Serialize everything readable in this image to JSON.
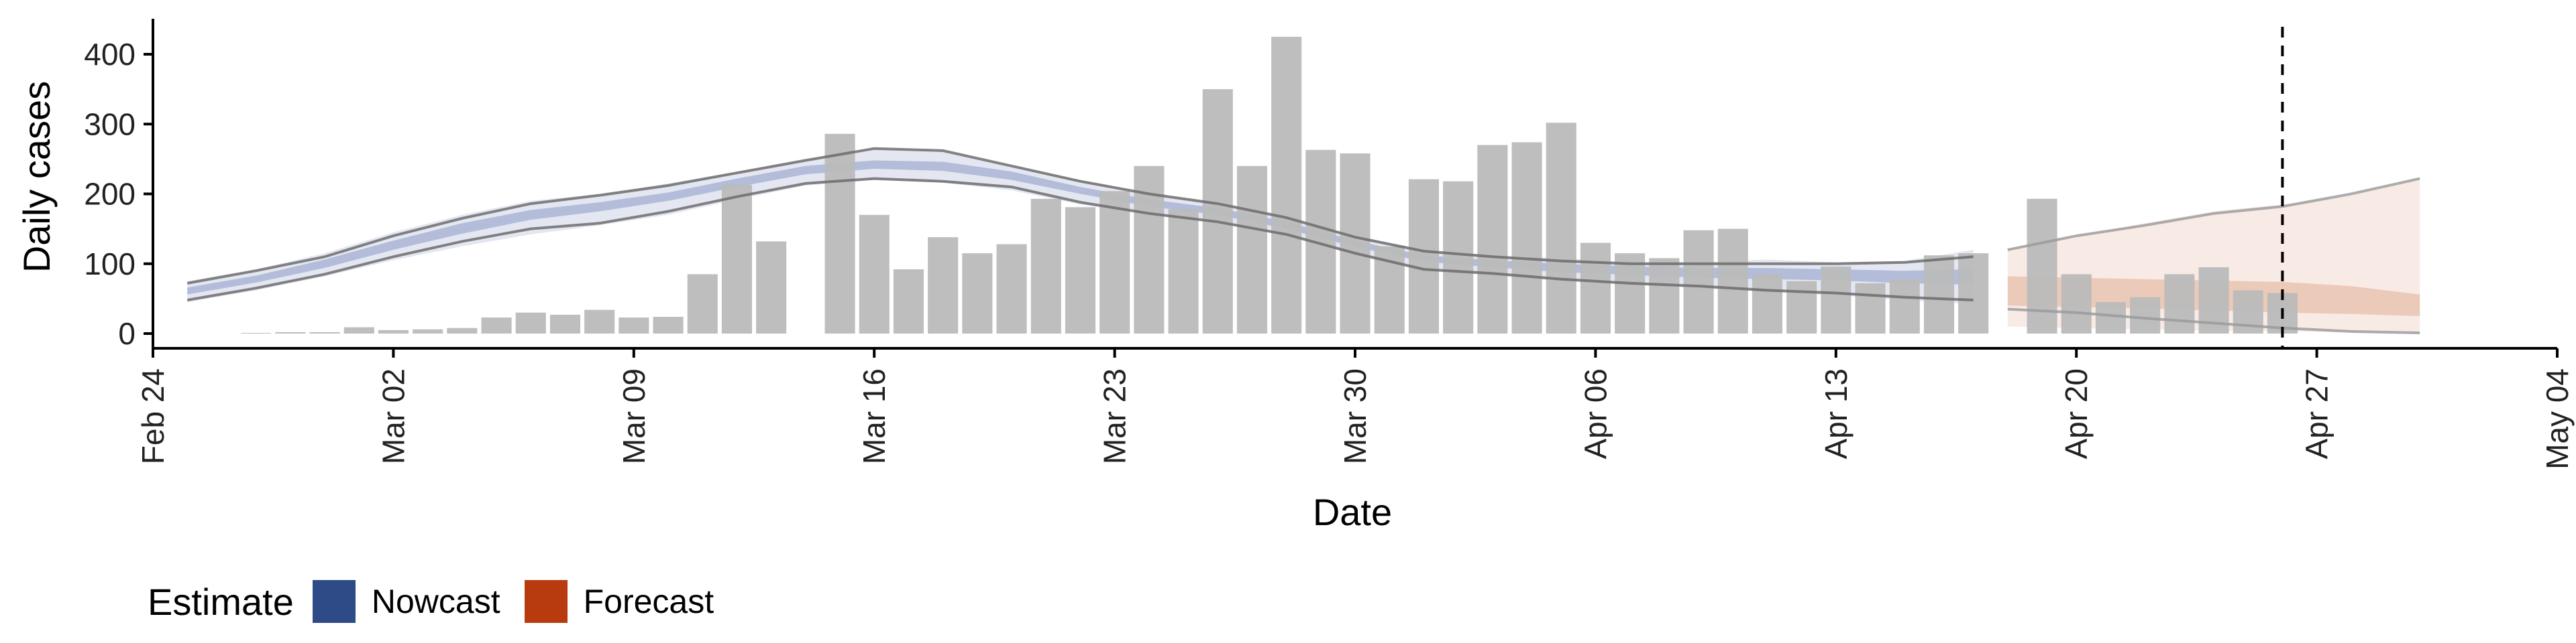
{
  "chart_data": {
    "type": "bar",
    "xlabel": "Date",
    "ylabel": "Daily cases",
    "xlim": [
      "2020-02-24",
      "2020-05-04"
    ],
    "ylim": [
      0,
      440
    ],
    "x_ticks": [
      "Feb 24",
      "Mar 02",
      "Mar 09",
      "Mar 16",
      "Mar 23",
      "Mar 30",
      "Apr 06",
      "Apr 13",
      "Apr 20",
      "Apr 27",
      "May 04"
    ],
    "y_ticks": [
      0,
      100,
      200,
      300,
      400
    ],
    "grid": false,
    "legend": {
      "title": "Estimate",
      "placement": "bottom-left",
      "entries": [
        {
          "label": "Nowcast",
          "color": "#2E4A87"
        },
        {
          "label": "Forecast",
          "color": "#B83B0F"
        }
      ]
    },
    "vline_date": "2020-04-26",
    "observed_cases": {
      "color": "#BBBBBB",
      "dates": [
        "2020-02-27",
        "2020-02-28",
        "2020-02-29",
        "2020-03-01",
        "2020-03-02",
        "2020-03-03",
        "2020-03-04",
        "2020-03-05",
        "2020-03-06",
        "2020-03-07",
        "2020-03-08",
        "2020-03-09",
        "2020-03-10",
        "2020-03-11",
        "2020-03-12",
        "2020-03-13",
        "2020-03-14",
        "2020-03-15",
        "2020-03-16",
        "2020-03-17",
        "2020-03-18",
        "2020-03-19",
        "2020-03-20",
        "2020-03-21",
        "2020-03-22",
        "2020-03-23",
        "2020-03-24",
        "2020-03-25",
        "2020-03-26",
        "2020-03-27",
        "2020-03-28",
        "2020-03-29",
        "2020-03-30",
        "2020-03-31",
        "2020-04-01",
        "2020-04-02",
        "2020-04-03",
        "2020-04-04",
        "2020-04-05",
        "2020-04-06",
        "2020-04-07",
        "2020-04-08",
        "2020-04-09",
        "2020-04-10",
        "2020-04-11",
        "2020-04-12",
        "2020-04-13",
        "2020-04-14",
        "2020-04-15",
        "2020-04-16",
        "2020-04-17",
        "2020-04-18",
        "2020-04-19",
        "2020-04-20",
        "2020-04-21",
        "2020-04-22",
        "2020-04-23",
        "2020-04-24",
        "2020-04-25",
        "2020-04-26"
      ],
      "values": [
        1,
        2,
        2,
        9,
        5,
        6,
        8,
        23,
        30,
        27,
        34,
        23,
        24,
        85,
        213,
        132,
        0,
        286,
        170,
        92,
        138,
        115,
        128,
        193,
        181,
        204,
        240,
        178,
        350,
        240,
        425,
        263,
        258,
        125,
        221,
        218,
        270,
        274,
        302,
        130,
        115,
        108,
        148,
        150,
        85,
        75,
        96,
        72,
        78,
        112,
        115,
        0,
        193,
        85,
        45,
        52,
        85,
        95,
        62,
        58
      ]
    },
    "nowcast": {
      "color": "#2E4A87",
      "dates": [
        "2020-02-25",
        "2020-02-27",
        "2020-02-29",
        "2020-03-02",
        "2020-03-04",
        "2020-03-06",
        "2020-03-08",
        "2020-03-10",
        "2020-03-12",
        "2020-03-14",
        "2020-03-16",
        "2020-03-18",
        "2020-03-20",
        "2020-03-22",
        "2020-03-24",
        "2020-03-26",
        "2020-03-28",
        "2020-03-30",
        "2020-04-01",
        "2020-04-03",
        "2020-04-05",
        "2020-04-07",
        "2020-04-09",
        "2020-04-11",
        "2020-04-13",
        "2020-04-15",
        "2020-04-17"
      ],
      "outer_lower": [
        45,
        62,
        82,
        105,
        125,
        142,
        155,
        170,
        192,
        212,
        220,
        216,
        205,
        185,
        170,
        158,
        140,
        112,
        90,
        84,
        75,
        70,
        65,
        60,
        55,
        48,
        42
      ],
      "outer_upper": [
        75,
        92,
        115,
        145,
        170,
        190,
        200,
        215,
        232,
        250,
        265,
        262,
        240,
        220,
        200,
        188,
        168,
        140,
        120,
        112,
        108,
        102,
        102,
        106,
        102,
        104,
        120
      ],
      "inner_lower": [
        56,
        73,
        94,
        120,
        143,
        163,
        175,
        190,
        210,
        228,
        236,
        233,
        220,
        200,
        182,
        170,
        150,
        124,
        103,
        95,
        88,
        84,
        80,
        78,
        76,
        72,
        70
      ],
      "inner_upper": [
        66,
        83,
        106,
        133,
        158,
        177,
        188,
        202,
        222,
        240,
        248,
        246,
        232,
        210,
        192,
        180,
        160,
        133,
        112,
        105,
        100,
        96,
        94,
        94,
        92,
        90,
        92
      ],
      "line_lower": [
        48,
        65,
        85,
        110,
        132,
        150,
        158,
        175,
        196,
        215,
        222,
        218,
        210,
        188,
        172,
        160,
        142,
        115,
        92,
        86,
        78,
        72,
        68,
        62,
        58,
        52,
        48
      ],
      "line_upper": [
        72,
        90,
        110,
        140,
        165,
        186,
        198,
        212,
        230,
        248,
        265,
        262,
        240,
        218,
        200,
        186,
        166,
        138,
        118,
        110,
        104,
        100,
        100,
        100,
        100,
        102,
        110
      ]
    },
    "forecast": {
      "color": "#B83B0F",
      "dates": [
        "2020-04-18",
        "2020-04-20",
        "2020-04-22",
        "2020-04-24",
        "2020-04-26",
        "2020-04-28",
        "2020-04-30"
      ],
      "outer_lower": [
        10,
        8,
        6,
        4,
        3,
        2,
        1
      ],
      "outer_upper": [
        120,
        140,
        158,
        175,
        185,
        198,
        222
      ],
      "inner_lower": [
        40,
        38,
        36,
        33,
        30,
        28,
        25
      ],
      "inner_upper": [
        82,
        80,
        78,
        76,
        74,
        68,
        56
      ],
      "line_lower": [
        35,
        30,
        22,
        15,
        8,
        3,
        1
      ],
      "line_upper": [
        120,
        140,
        155,
        172,
        182,
        200,
        222
      ]
    }
  }
}
